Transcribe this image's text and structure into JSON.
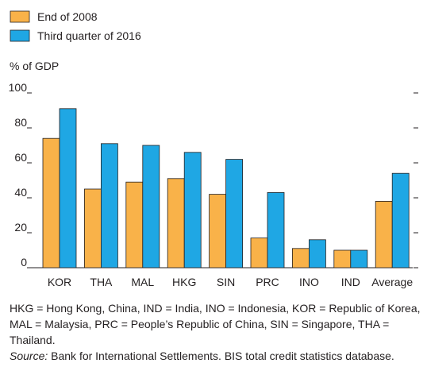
{
  "chart_data": {
    "type": "bar",
    "ylabel": "% of GDP",
    "ylim": [
      0,
      100
    ],
    "yticks": [
      0,
      20,
      40,
      60,
      80,
      100
    ],
    "categories": [
      "KOR",
      "THA",
      "MAL",
      "HKG",
      "SIN",
      "PRC",
      "INO",
      "IND",
      "Average"
    ],
    "series": [
      {
        "name": "End of 2008",
        "color": "#f9b249",
        "values": [
          74,
          45,
          49,
          51,
          42,
          17,
          11,
          10,
          38
        ]
      },
      {
        "name": "Third quarter of 2016",
        "color": "#1fa7e4",
        "values": [
          91,
          71,
          70,
          66,
          62,
          43,
          16,
          10,
          54
        ]
      }
    ],
    "legend_position": "top-left",
    "grid": false
  },
  "notes": {
    "abbreviations": "HKG = Hong Kong, China, IND = India, INO = Indonesia, KOR = Republic of Korea, MAL = Malaysia, PRC = People’s Republic of China, SIN = Singapore, THA = Thailand.",
    "source_label": "Source:",
    "source_text": " Bank for International Settlements. BIS total credit statistics database."
  }
}
